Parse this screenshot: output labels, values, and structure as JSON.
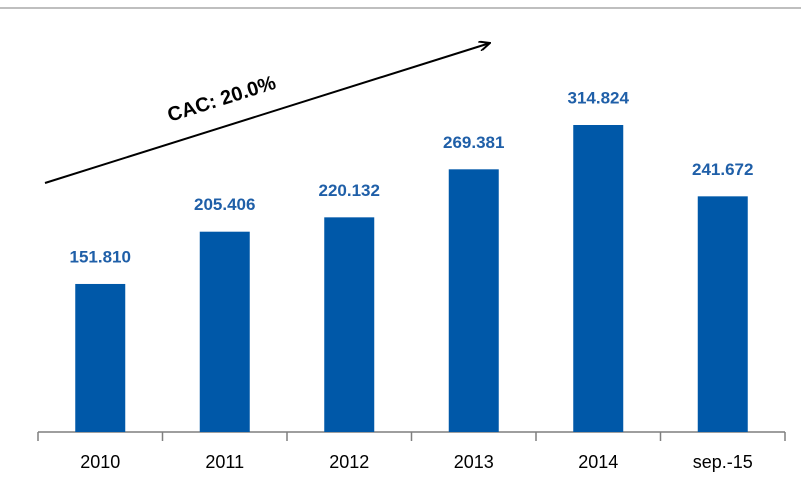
{
  "chart_data": {
    "type": "bar",
    "categories": [
      "2010",
      "2011",
      "2012",
      "2013",
      "2014",
      "sep.-15"
    ],
    "values": [
      151810,
      205406,
      220132,
      269381,
      314824,
      241672
    ],
    "value_labels": [
      "151.810",
      "205.406",
      "220.132",
      "269.381",
      "314.824",
      "241.672"
    ],
    "color": "#0058a8",
    "label_color": "#1f5fa8",
    "annotation": "CAC: 20.0%"
  }
}
